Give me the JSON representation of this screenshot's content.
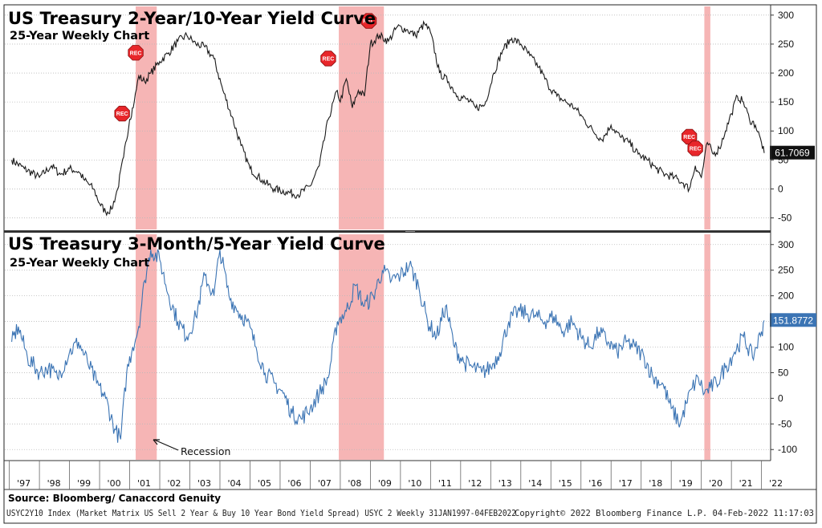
{
  "chart_data": [
    {
      "type": "line",
      "title": "US Treasury 2-Year/10-Year Yield Curve",
      "subtitle": "25-Year Weekly Chart",
      "ylim": [
        -70,
        315
      ],
      "yticks": [
        -50,
        0,
        50,
        100,
        150,
        200,
        250,
        300
      ],
      "last_value": "61.7069",
      "line_color": "#1a1a1a",
      "marker_label": "REC",
      "recession_markers": [
        [
          2000.75,
          130
        ],
        [
          2001.2,
          235
        ],
        [
          2007.6,
          225
        ],
        [
          2008.95,
          290
        ],
        [
          2019.6,
          90
        ],
        [
          2019.8,
          70
        ]
      ],
      "series": [
        {
          "x": [
            1997.08,
            1997.5,
            1998.0,
            1998.4,
            1998.7,
            1999.0,
            1999.3,
            1999.5,
            1999.8,
            2000.0,
            2000.2,
            2000.4,
            2000.6,
            2000.8,
            2001.0,
            2001.15,
            2001.3,
            2001.5,
            2001.7,
            2002.0,
            2002.3,
            2002.6,
            2002.9,
            2003.2,
            2003.5,
            2003.8,
            2004.1,
            2004.4,
            2004.7,
            2005.0,
            2005.4,
            2005.8,
            2006.2,
            2006.6,
            2007.0,
            2007.3,
            2007.6,
            2007.9,
            2008.0,
            2008.2,
            2008.4,
            2008.6,
            2008.8,
            2009.0,
            2009.3,
            2009.6,
            2009.9,
            2010.2,
            2010.5,
            2010.8,
            2011.0,
            2011.3,
            2011.6,
            2011.9,
            2012.2,
            2012.5,
            2012.8,
            2013.1,
            2013.4,
            2013.7,
            2014.0,
            2014.3,
            2014.6,
            2014.9,
            2015.2,
            2015.5,
            2015.8,
            2016.1,
            2016.4,
            2016.7,
            2017.0,
            2017.3,
            2017.6,
            2017.9,
            2018.2,
            2018.5,
            2018.8,
            2019.1,
            2019.4,
            2019.6,
            2019.8,
            2020.0,
            2020.2,
            2020.4,
            2020.6,
            2020.8,
            2021.0,
            2021.2,
            2021.4,
            2021.6,
            2021.8,
            2022.0,
            2022.09
          ],
          "y": [
            50,
            35,
            20,
            40,
            25,
            35,
            30,
            15,
            0,
            -25,
            -40,
            -35,
            0,
            55,
            120,
            150,
            195,
            185,
            200,
            220,
            235,
            255,
            265,
            250,
            245,
            225,
            170,
            125,
            75,
            35,
            15,
            0,
            -5,
            -10,
            5,
            40,
            120,
            170,
            150,
            190,
            140,
            170,
            160,
            250,
            265,
            255,
            280,
            275,
            265,
            285,
            270,
            200,
            185,
            160,
            155,
            140,
            145,
            200,
            240,
            260,
            250,
            230,
            210,
            180,
            160,
            150,
            140,
            120,
            100,
            85,
            110,
            90,
            80,
            60,
            50,
            35,
            25,
            20,
            10,
            0,
            40,
            20,
            80,
            60,
            70,
            100,
            130,
            160,
            150,
            120,
            110,
            80,
            62
          ]
        }
      ]
    },
    {
      "type": "line",
      "title": "US Treasury 3-Month/5-Year Yield Curve",
      "subtitle": "25-Year Weekly Chart",
      "ylim": [
        -120,
        320
      ],
      "yticks": [
        -100,
        -50,
        0,
        50,
        100,
        150,
        200,
        250,
        300
      ],
      "last_value": "151.8772",
      "line_color": "#3b74b4",
      "series": [
        {
          "x": [
            1997.08,
            1997.3,
            1997.6,
            1998.0,
            1998.3,
            1998.6,
            1999.0,
            1999.3,
            1999.6,
            1999.9,
            2000.2,
            2000.5,
            2000.7,
            2000.9,
            2001.1,
            2001.3,
            2001.5,
            2001.7,
            2002.0,
            2002.3,
            2002.6,
            2002.9,
            2003.2,
            2003.5,
            2003.8,
            2004.0,
            2004.3,
            2004.6,
            2004.9,
            2005.2,
            2005.5,
            2005.8,
            2006.1,
            2006.4,
            2006.7,
            2007.0,
            2007.3,
            2007.6,
            2007.9,
            2008.2,
            2008.5,
            2008.8,
            2009.1,
            2009.4,
            2009.7,
            2010.0,
            2010.3,
            2010.6,
            2010.9,
            2011.2,
            2011.5,
            2011.8,
            2012.1,
            2012.4,
            2012.7,
            2013.0,
            2013.3,
            2013.6,
            2013.9,
            2014.2,
            2014.5,
            2014.8,
            2015.1,
            2015.4,
            2015.7,
            2016.0,
            2016.3,
            2016.6,
            2016.9,
            2017.2,
            2017.5,
            2017.8,
            2018.1,
            2018.4,
            2018.7,
            2019.0,
            2019.3,
            2019.5,
            2019.7,
            2019.9,
            2020.1,
            2020.3,
            2020.5,
            2020.8,
            2021.1,
            2021.4,
            2021.7,
            2022.0,
            2022.09
          ],
          "y": [
            110,
            140,
            80,
            50,
            60,
            40,
            90,
            110,
            70,
            30,
            0,
            -60,
            -80,
            50,
            100,
            140,
            230,
            290,
            270,
            200,
            150,
            120,
            160,
            240,
            200,
            290,
            200,
            170,
            150,
            100,
            50,
            30,
            10,
            -30,
            -40,
            -20,
            10,
            40,
            150,
            170,
            220,
            180,
            200,
            250,
            230,
            240,
            260,
            220,
            150,
            120,
            180,
            100,
            70,
            60,
            50,
            60,
            90,
            150,
            170,
            165,
            160,
            150,
            160,
            130,
            150,
            120,
            100,
            130,
            110,
            90,
            110,
            100,
            80,
            40,
            30,
            -20,
            -50,
            -10,
            20,
            40,
            10,
            20,
            30,
            60,
            90,
            120,
            80,
            130,
            152
          ]
        }
      ]
    }
  ],
  "x_axis": {
    "min": 1996.85,
    "max": 2022.25,
    "tick_labels": [
      "'97",
      "'98",
      "'99",
      "'00",
      "'01",
      "'02",
      "'03",
      "'04",
      "'05",
      "'06",
      "'07",
      "'08",
      "'09",
      "'10",
      "'11",
      "'12",
      "'13",
      "'14",
      "'15",
      "'16",
      "'17",
      "'18",
      "'19",
      "'20",
      "'21",
      "'22"
    ],
    "tick_values": [
      1997,
      1998,
      1999,
      2000,
      2001,
      2002,
      2003,
      2004,
      2005,
      2006,
      2007,
      2008,
      2009,
      2010,
      2011,
      2012,
      2013,
      2014,
      2015,
      2016,
      2017,
      2018,
      2019,
      2020,
      2021,
      2022
    ]
  },
  "recessions": [
    [
      2001.2,
      2001.9
    ],
    [
      2007.95,
      2009.45
    ],
    [
      2020.1,
      2020.3
    ]
  ],
  "recession_color": "#f4a3a3",
  "annotation": {
    "text": "Recession"
  },
  "source_text": "Source: Bloomberg/ Canaccord Genuity",
  "footer": {
    "left": "USYC2Y10 Index (Market Matrix US Sell 2 Year & Buy 10 Year Bond Yield Spread) USYC 2  Weekly 31JAN1997-04FEB2022",
    "right": "Copyright© 2022 Bloomberg Finance L.P.    04-Feb-2022 11:17:03"
  }
}
